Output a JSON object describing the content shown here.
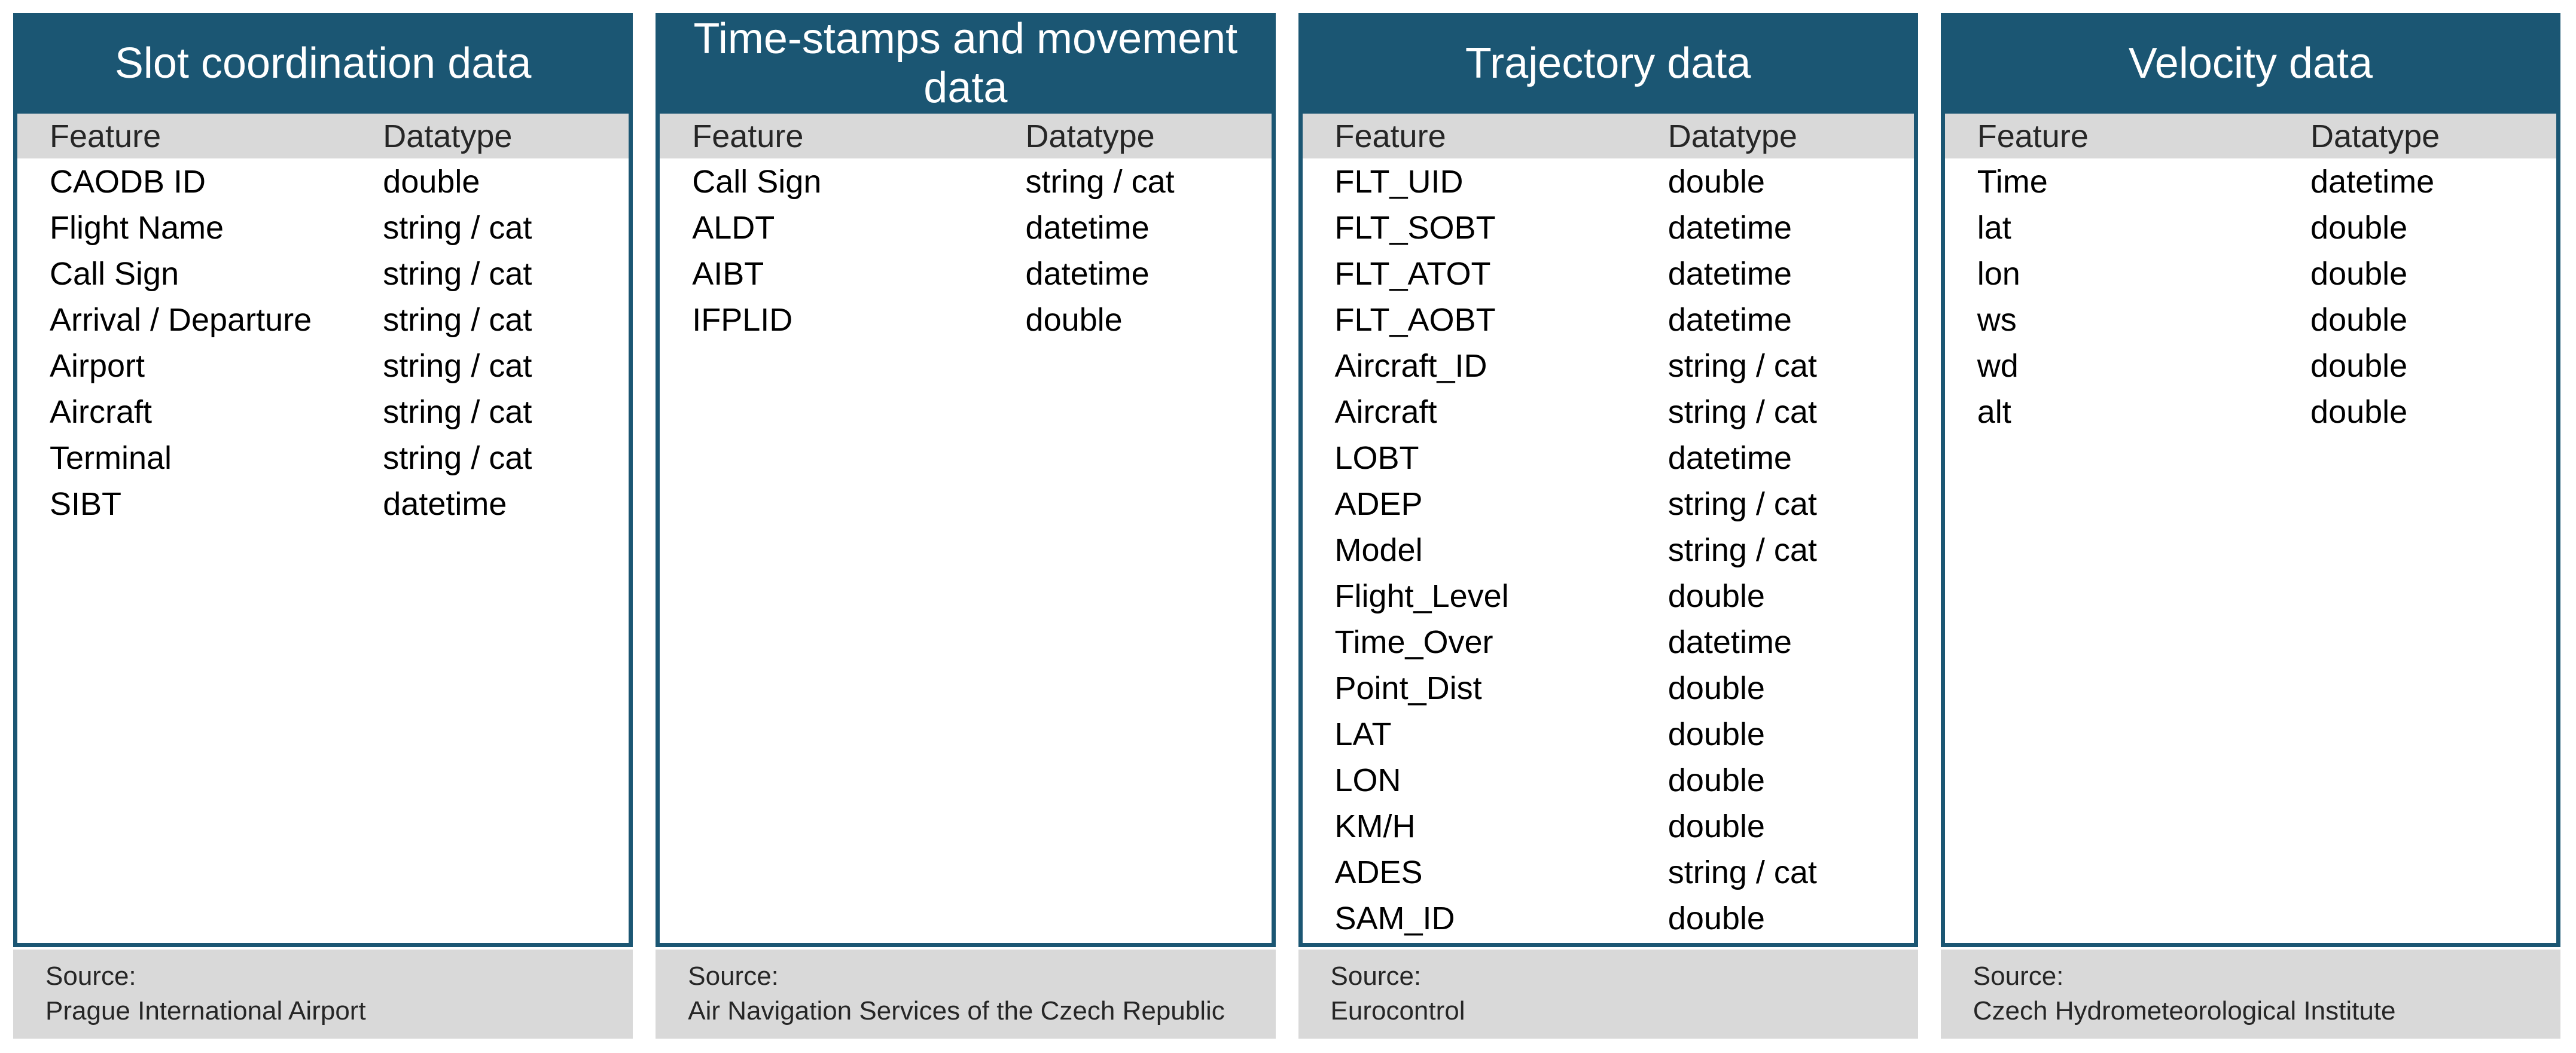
{
  "theme": {
    "header_blue": "#1b5673",
    "band_gray": "#d9d9d9",
    "header_text_color": "#ffffff",
    "body_text_color": "#000000",
    "background": "#ffffff"
  },
  "columns": {
    "feature": "Feature",
    "datatype": "Datatype"
  },
  "source_label": "Source:",
  "cards": [
    {
      "title": "Slot coordination data",
      "source": "Prague International Airport",
      "rows": [
        {
          "feature": "CAODB ID",
          "datatype": "double"
        },
        {
          "feature": "Flight Name",
          "datatype": "string / cat"
        },
        {
          "feature": "Call Sign",
          "datatype": "string / cat"
        },
        {
          "feature": "Arrival / Departure",
          "datatype": "string / cat"
        },
        {
          "feature": "Airport",
          "datatype": "string / cat"
        },
        {
          "feature": "Aircraft",
          "datatype": "string / cat"
        },
        {
          "feature": "Terminal",
          "datatype": "string / cat"
        },
        {
          "feature": "SIBT",
          "datatype": "datetime"
        }
      ]
    },
    {
      "title": "Time-stamps and movement data",
      "source": "Air Navigation Services of the Czech Republic",
      "rows": [
        {
          "feature": "Call Sign",
          "datatype": "string / cat"
        },
        {
          "feature": "ALDT",
          "datatype": "datetime"
        },
        {
          "feature": "AIBT",
          "datatype": "datetime"
        },
        {
          "feature": "IFPLID",
          "datatype": "double"
        }
      ]
    },
    {
      "title": "Trajectory data",
      "source": "Eurocontrol",
      "rows": [
        {
          "feature": "FLT_UID",
          "datatype": "double"
        },
        {
          "feature": "FLT_SOBT",
          "datatype": "datetime"
        },
        {
          "feature": "FLT_ATOT",
          "datatype": "datetime"
        },
        {
          "feature": "FLT_AOBT",
          "datatype": "datetime"
        },
        {
          "feature": "Aircraft_ID",
          "datatype": "string / cat"
        },
        {
          "feature": "Aircraft",
          "datatype": "string / cat"
        },
        {
          "feature": "LOBT",
          "datatype": "datetime"
        },
        {
          "feature": "ADEP",
          "datatype": "string / cat"
        },
        {
          "feature": "Model",
          "datatype": "string / cat"
        },
        {
          "feature": "Flight_Level",
          "datatype": "double"
        },
        {
          "feature": "Time_Over",
          "datatype": "datetime"
        },
        {
          "feature": "Point_Dist",
          "datatype": "double"
        },
        {
          "feature": "LAT",
          "datatype": "double"
        },
        {
          "feature": "LON",
          "datatype": "double"
        },
        {
          "feature": "KM/H",
          "datatype": "double"
        },
        {
          "feature": "ADES",
          "datatype": "string / cat"
        },
        {
          "feature": "SAM_ID",
          "datatype": "double"
        }
      ]
    },
    {
      "title": "Velocity data",
      "source": "Czech Hydrometeorological Institute",
      "rows": [
        {
          "feature": "Time",
          "datatype": "datetime"
        },
        {
          "feature": "lat",
          "datatype": "double"
        },
        {
          "feature": "lon",
          "datatype": "double"
        },
        {
          "feature": "ws",
          "datatype": "double"
        },
        {
          "feature": "wd",
          "datatype": "double"
        },
        {
          "feature": "alt",
          "datatype": "double"
        }
      ]
    }
  ]
}
